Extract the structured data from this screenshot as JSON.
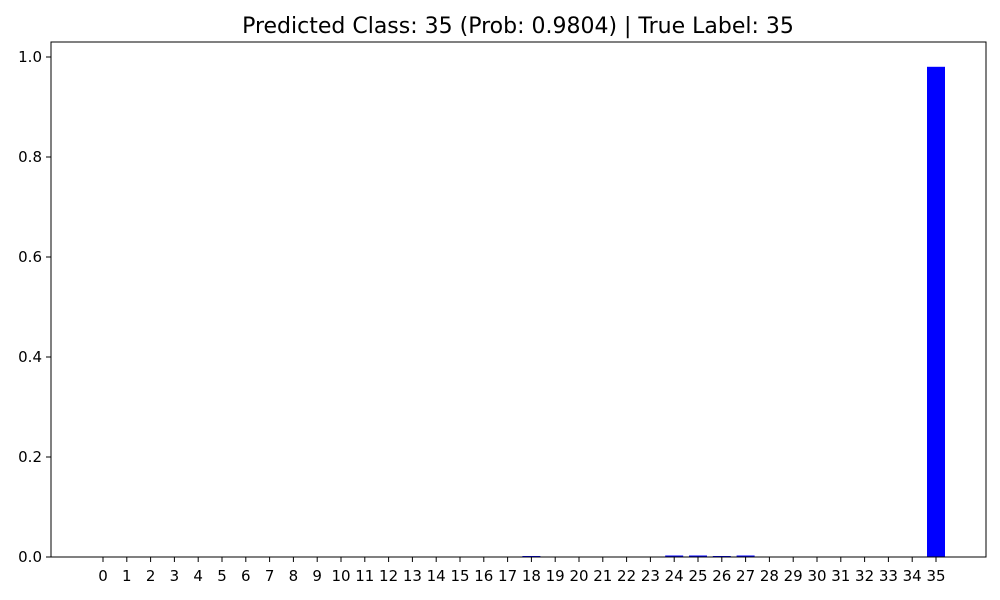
{
  "chart_data": {
    "type": "bar",
    "title": "Predicted Class: 35 (Prob: 0.9804) | True Label: 35",
    "xlabel": "",
    "ylabel": "",
    "categories": [
      "0",
      "1",
      "2",
      "3",
      "4",
      "5",
      "6",
      "7",
      "8",
      "9",
      "10",
      "11",
      "12",
      "13",
      "14",
      "15",
      "16",
      "17",
      "18",
      "19",
      "20",
      "21",
      "22",
      "23",
      "24",
      "25",
      "26",
      "27",
      "28",
      "29",
      "30",
      "31",
      "32",
      "33",
      "34",
      "35"
    ],
    "values": [
      0,
      0,
      0,
      0,
      0,
      0,
      0,
      0,
      0,
      0,
      0,
      0,
      0,
      0,
      0,
      0,
      0,
      0,
      0.001,
      0,
      0,
      0,
      0,
      0,
      0.003,
      0.003,
      0.002,
      0.003,
      0,
      0,
      0,
      0,
      0,
      0,
      0,
      0.9804
    ],
    "ylim": [
      0,
      1.03
    ],
    "yticks": [
      "0.0",
      "0.2",
      "0.4",
      "0.6",
      "0.8",
      "1.0"
    ],
    "bar_color": "#0000ff",
    "grid": false,
    "legend": "none"
  }
}
